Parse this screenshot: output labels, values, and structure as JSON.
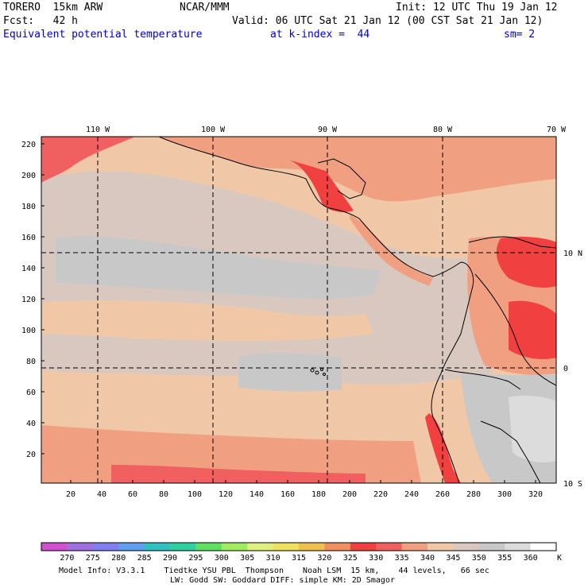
{
  "header": {
    "model": "TORERO  15km ARW",
    "org": "NCAR/MMM",
    "init": "Init: 12 UTC Thu 19 Jan 12",
    "fcst": "Fcst:   42 h",
    "valid": "Valid: 06 UTC Sat 21 Jan 12 (00 CST Sat 21 Jan 12)",
    "field": "Equivalent potential temperature",
    "level": "at k-index =  44",
    "smoothing": "sm= 2"
  },
  "map": {
    "lon_labels": [
      "110 W",
      "100 W",
      "90 W",
      "80 W",
      "70 W"
    ],
    "lat_labels": [
      "10 N",
      "0",
      "10 S"
    ],
    "x_ticks": [
      "20",
      "40",
      "60",
      "80",
      "100",
      "120",
      "140",
      "160",
      "180",
      "200",
      "220",
      "240",
      "260",
      "280",
      "300",
      "320"
    ],
    "y_ticks": [
      "220",
      "200",
      "180",
      "160",
      "140",
      "120",
      "100",
      "80",
      "60",
      "40",
      "20"
    ]
  },
  "colorbar": {
    "labels": [
      "270",
      "275",
      "280",
      "285",
      "290",
      "295",
      "300",
      "305",
      "310",
      "315",
      "320",
      "325",
      "330",
      "335",
      "340",
      "345",
      "350",
      "355",
      "360"
    ],
    "unit": "K",
    "colors": [
      "#d050d0",
      "#a070e0",
      "#8080f0",
      "#60a0f0",
      "#30c0c0",
      "#30d0a0",
      "#60e060",
      "#a0ec60",
      "#e0f080",
      "#f0e060",
      "#f0c050",
      "#f09060",
      "#f04040",
      "#f06060",
      "#f0a080",
      "#f0c8a8",
      "#d8c8c0",
      "#c8c8c8",
      "#dcdcdc",
      "#ffffff"
    ]
  },
  "footer": {
    "line1": "Model Info: V3.3.1    Tiedtke YSU PBL  Thompson    Noah LSM  15 km,    44 levels,   66 sec",
    "line2": "LW: Godd SW: Goddard DIFF: simple KM: 2D Smagor"
  }
}
